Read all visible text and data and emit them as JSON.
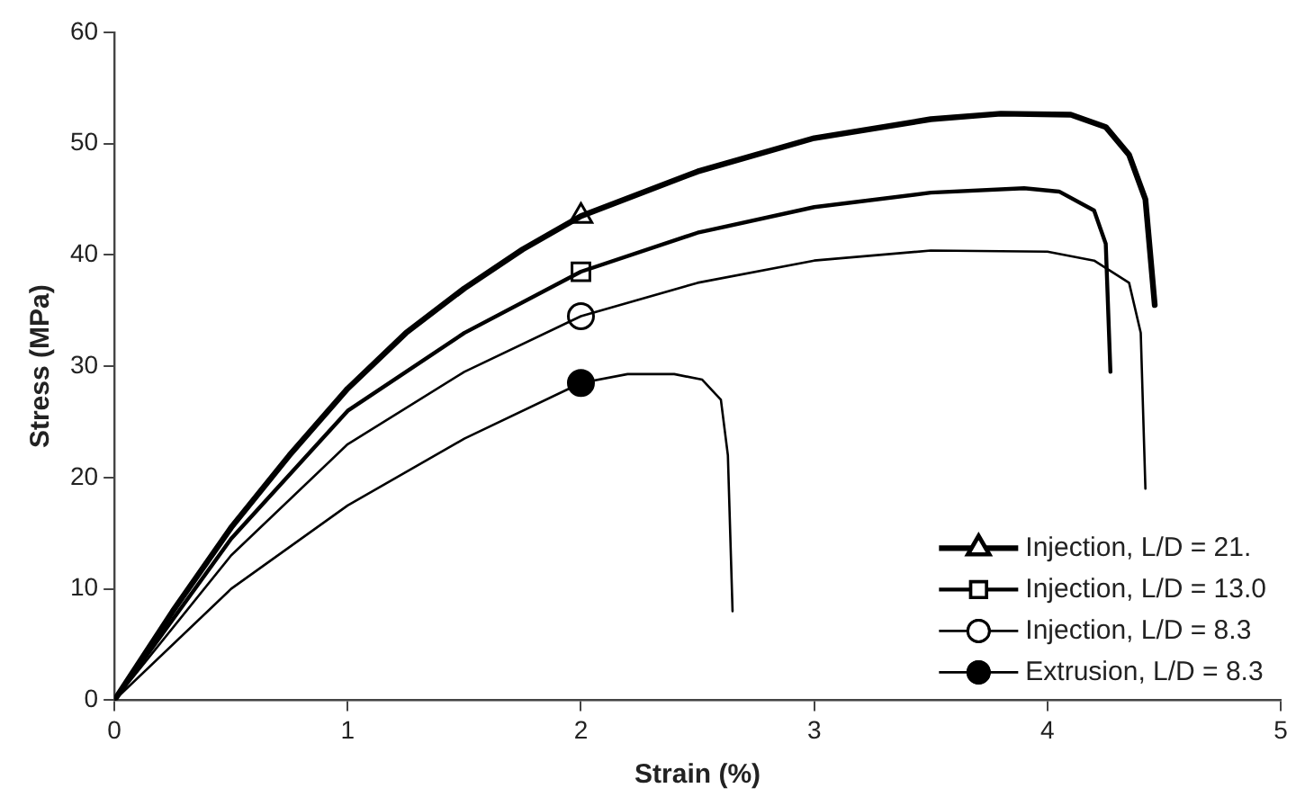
{
  "chart_data": {
    "type": "line",
    "xlabel": "Strain (%)",
    "ylabel": "Stress (MPa)",
    "xlim": [
      0,
      5
    ],
    "xticks": [
      0,
      1,
      2,
      3,
      4,
      5
    ],
    "ylim": [
      0,
      60
    ],
    "yticks": [
      0,
      10,
      20,
      30,
      40,
      50,
      60
    ],
    "grid": false,
    "legend": "bottom right",
    "line_style": "solid",
    "series": [
      {
        "name": "Injection, L/D = 21.",
        "color": "#000000",
        "x": [
          0,
          0.25,
          0.5,
          0.75,
          1,
          1.25,
          1.5,
          1.75,
          2,
          2.5,
          3,
          3.5,
          3.8,
          4.1,
          4.25,
          4.35,
          4.42,
          4.46
        ],
        "values": [
          0,
          8,
          15.5,
          22,
          28,
          33,
          37,
          40.5,
          43.5,
          47.5,
          50.5,
          52.2,
          52.7,
          52.6,
          51.5,
          49,
          45,
          35.5
        ]
      },
      {
        "name": "Injection, L/D = 13.0",
        "color": "#000000",
        "x": [
          0,
          0.5,
          1,
          1.5,
          2,
          2.5,
          3,
          3.5,
          3.9,
          4.05,
          4.2,
          4.25,
          4.27
        ],
        "values": [
          0,
          14.5,
          26,
          33,
          38.5,
          42,
          44.3,
          45.6,
          46,
          45.7,
          44,
          41,
          29.5
        ]
      },
      {
        "name": "Injection, L/D = 8.3",
        "color": "#000000",
        "x": [
          0,
          0.5,
          1,
          1.5,
          2,
          2.5,
          3,
          3.5,
          4,
          4.2,
          4.35,
          4.4,
          4.42
        ],
        "values": [
          0,
          13,
          23,
          29.5,
          34.5,
          37.5,
          39.5,
          40.4,
          40.3,
          39.5,
          37.5,
          33,
          19
        ]
      },
      {
        "name": "Extrusion, L/D = 8.3",
        "color": "#000000",
        "x": [
          0,
          0.5,
          1,
          1.5,
          2,
          2.2,
          2.4,
          2.52,
          2.6,
          2.63,
          2.65
        ],
        "values": [
          0,
          10,
          17.5,
          23.5,
          28.5,
          29.3,
          29.3,
          28.8,
          27,
          22,
          8
        ]
      },
      {
        "type": "scatter",
        "color": "#000000",
        "marker": "triangle",
        "x": [
          2
        ],
        "values": [
          43.5
        ]
      },
      {
        "type": "scatter",
        "color": "#000000",
        "marker": "square",
        "x": [
          2
        ],
        "values": [
          38.5
        ]
      },
      {
        "type": "scatter",
        "color": "#000000",
        "marker": "circle",
        "x": [
          2
        ],
        "values": [
          34.5
        ]
      },
      {
        "type": "scatter",
        "color": "#000000",
        "marker": "circle",
        "x": [
          2
        ],
        "values": [
          28.5
        ]
      }
    ]
  }
}
